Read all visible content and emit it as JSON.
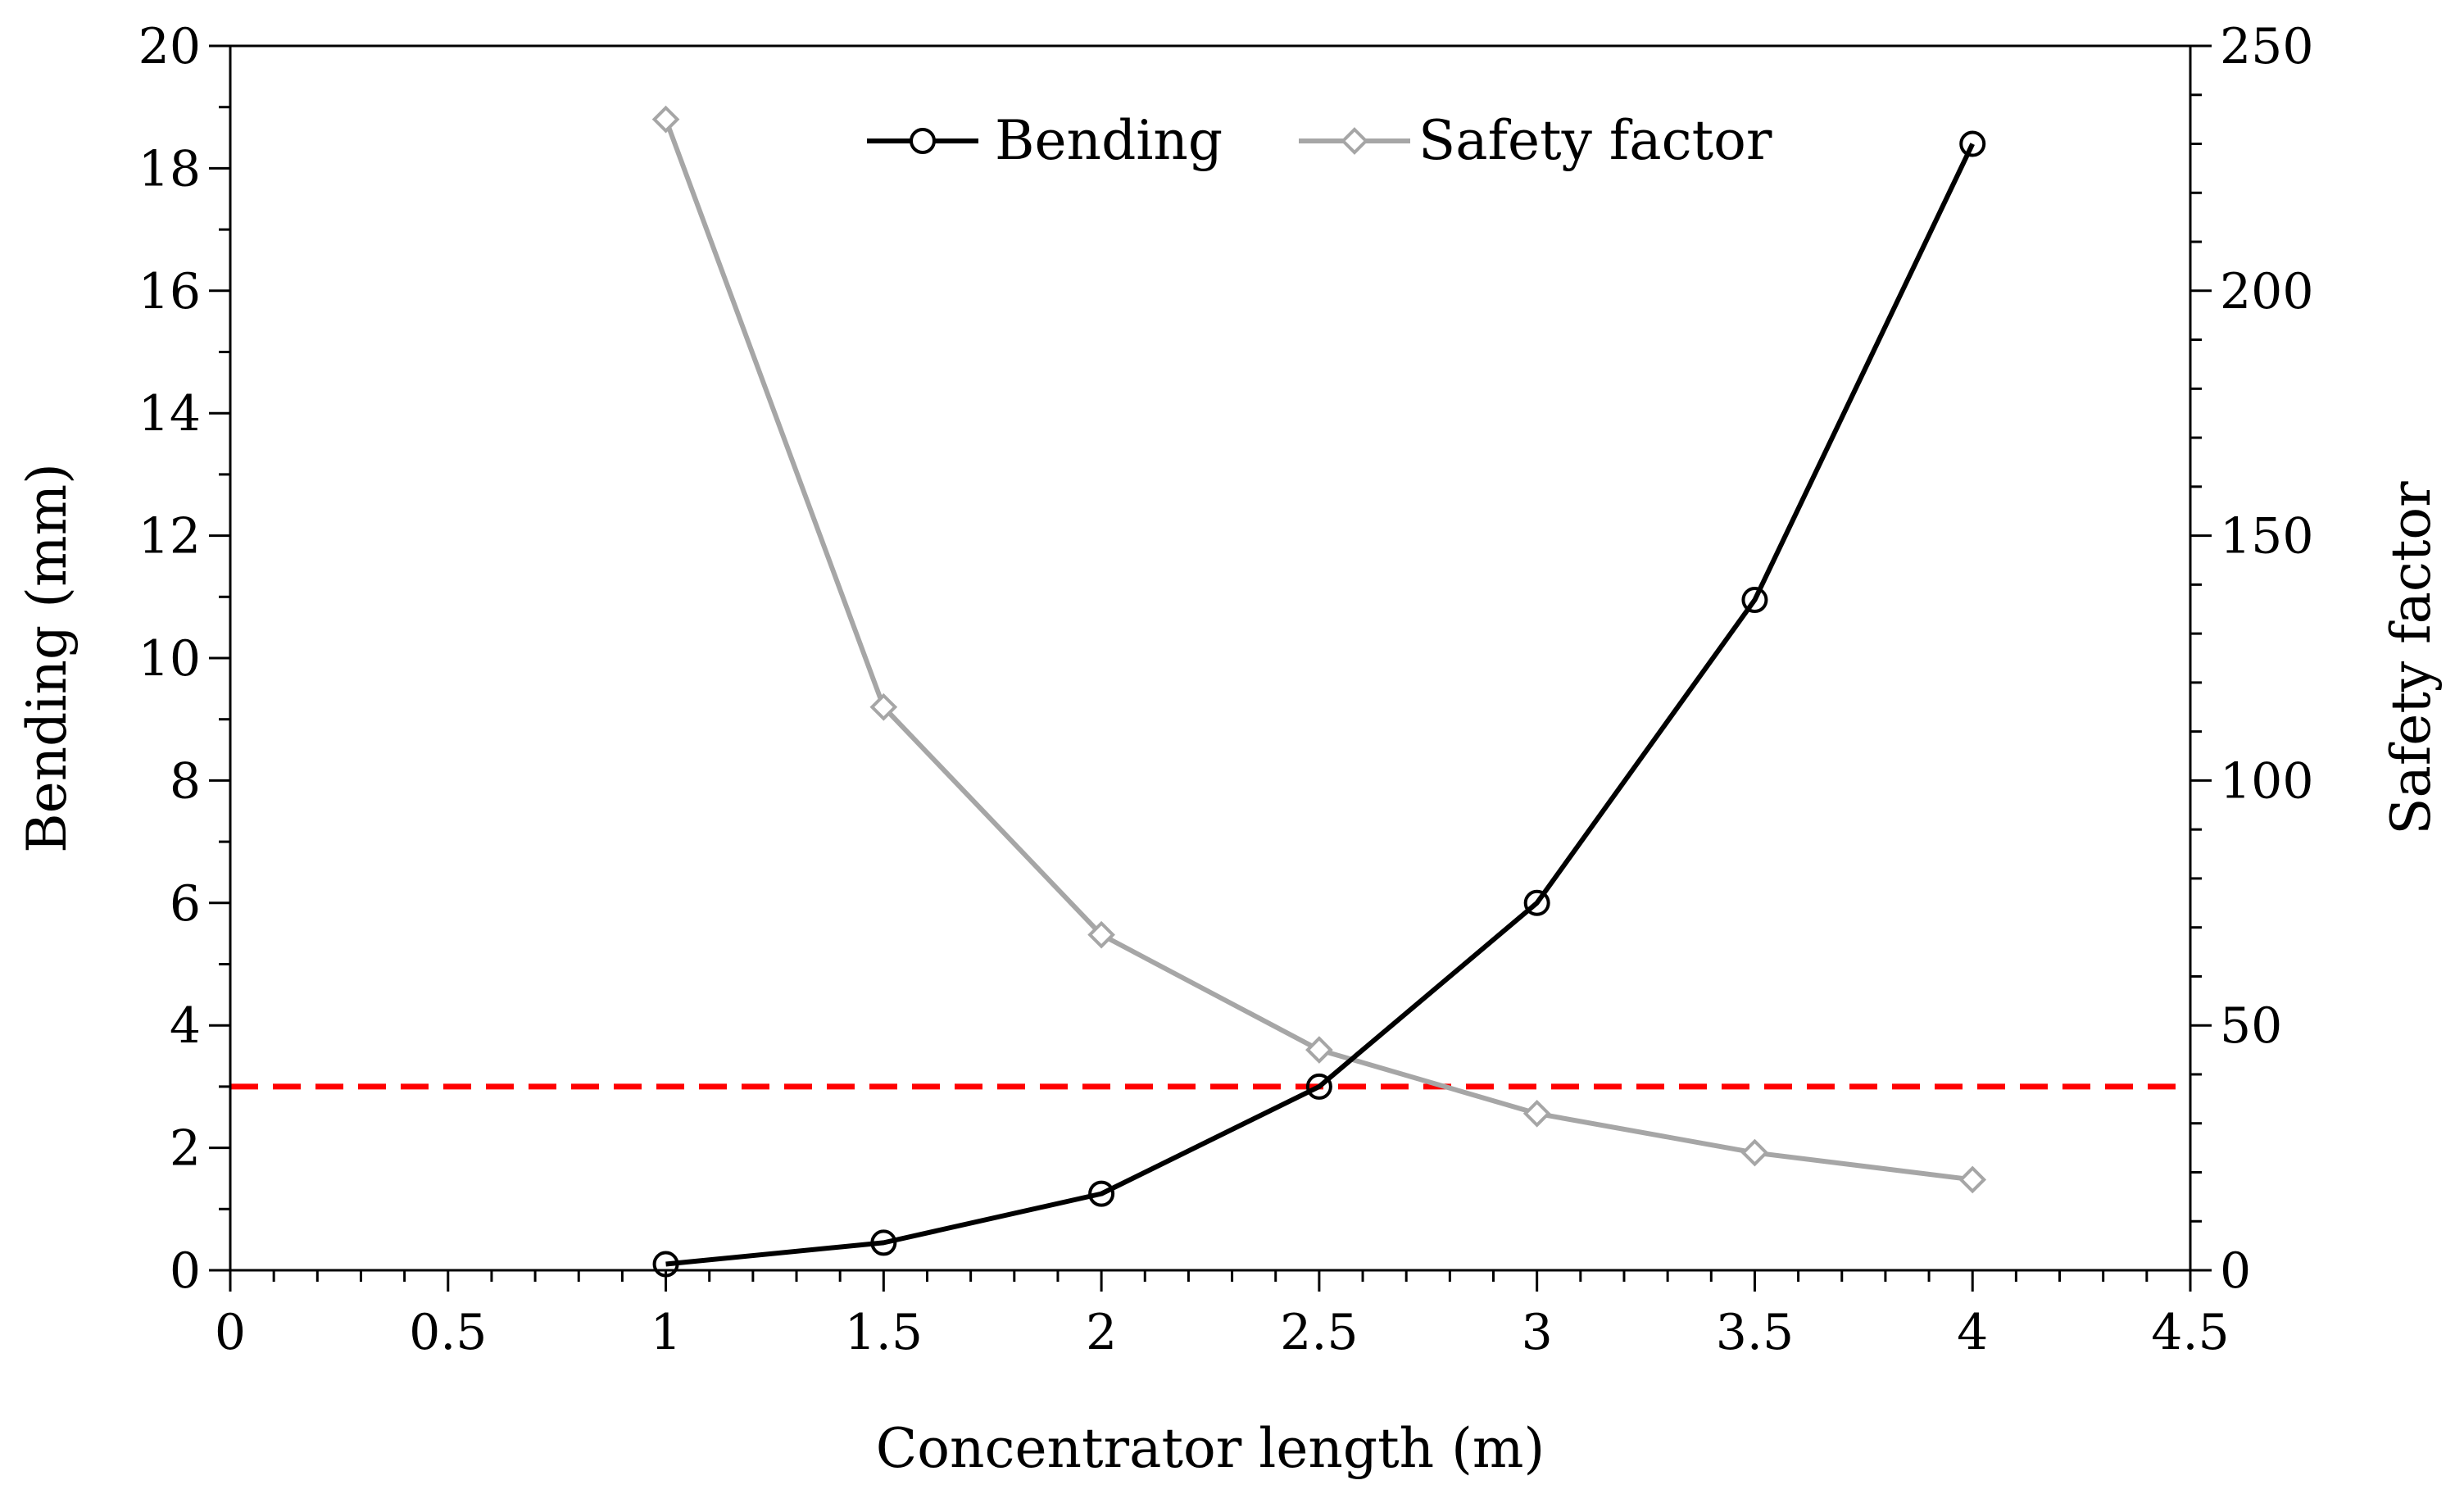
{
  "chart_data": {
    "type": "line",
    "title": "",
    "xlabel": "Concentrator length (m)",
    "ylabel": "Bending (mm)",
    "ylabel_right": "Safety factor",
    "xlim": [
      0,
      4.5
    ],
    "ylim": [
      0,
      20
    ],
    "ylim_right": [
      0,
      250
    ],
    "x_ticks": [
      0,
      0.5,
      1,
      1.5,
      2,
      2.5,
      3,
      3.5,
      4,
      4.5
    ],
    "x_tick_labels": [
      "0",
      "0.5",
      "1",
      "1.5",
      "2",
      "2.5",
      "3",
      "3.5",
      "4",
      "4.5"
    ],
    "y_ticks": [
      0,
      2,
      4,
      6,
      8,
      10,
      12,
      14,
      16,
      18,
      20
    ],
    "y_tick_labels": [
      "0",
      "2",
      "4",
      "6",
      "8",
      "10",
      "12",
      "14",
      "16",
      "18",
      "20"
    ],
    "y_right_ticks": [
      0,
      50,
      100,
      150,
      200,
      250
    ],
    "y_right_tick_labels": [
      "0",
      "50",
      "100",
      "150",
      "200",
      "250"
    ],
    "grid": false,
    "legend_position": "top-center",
    "x": [
      1,
      1.5,
      2,
      2.5,
      3,
      3.5,
      4
    ],
    "series": [
      {
        "name": "Bending",
        "axis": "left",
        "marker": "circle",
        "color": "#000000",
        "values": [
          0.1,
          0.45,
          1.25,
          3.0,
          6.0,
          10.95,
          18.4
        ]
      },
      {
        "name": "Safety factor",
        "axis": "right",
        "marker": "diamond",
        "color": "#a6a6a6",
        "values": [
          235,
          115,
          68.5,
          45,
          32,
          24,
          18.5
        ]
      }
    ],
    "reference_line": {
      "axis": "left",
      "y": 3,
      "color": "#ff0000",
      "style": "dashed"
    }
  }
}
